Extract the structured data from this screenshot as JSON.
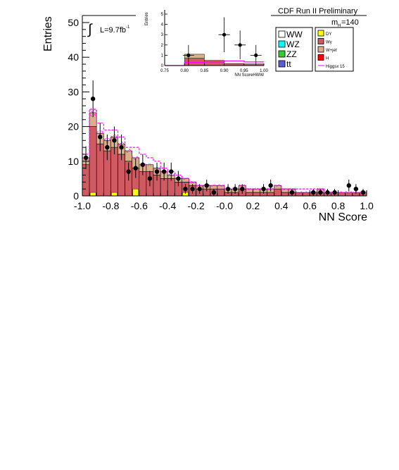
{
  "chart_data": {
    "type": "histogram",
    "title": "CDF Run II Preliminary",
    "xlabel": "NN Score",
    "ylabel": "Entries",
    "xlim": [
      -1.0,
      1.0
    ],
    "ylim": [
      0,
      53
    ],
    "x_ticks": [
      "-1.0",
      "-0.8",
      "-0.6",
      "-0.4",
      "-0.2",
      "-0.0",
      "0.2",
      "0.4",
      "0.6",
      "0.8",
      "1.0"
    ],
    "x_tick_values": [
      -1.0,
      -0.8,
      -0.6,
      -0.4,
      -0.2,
      0.0,
      0.2,
      0.4,
      0.6,
      0.8,
      1.0
    ],
    "y_ticks": [
      "0",
      "10",
      "20",
      "30",
      "40",
      "50"
    ],
    "y_tick_values": [
      0,
      10,
      20,
      30,
      40,
      50
    ],
    "annotations": {
      "luminosity": "L=9.7fb",
      "luminosity_sup": "-1",
      "mass_label": "m",
      "mass_sub": "H",
      "mass_value": "=140",
      "integral_symbol": "∫"
    },
    "bin_edges_start": -1.0,
    "bin_width": 0.05,
    "stack_bins": {
      "Wgamma": [
        9,
        20,
        15,
        13,
        14,
        12,
        10,
        8,
        7,
        7,
        6,
        5,
        5,
        4,
        4,
        3,
        2,
        2,
        2,
        2,
        1,
        1,
        2,
        1,
        1,
        1,
        1,
        2,
        1,
        1,
        1,
        1,
        1,
        1,
        1,
        1,
        1,
        1,
        1,
        1
      ],
      "Wjet": [
        2,
        4,
        3,
        3,
        3,
        3,
        3,
        3,
        2,
        2,
        2,
        2,
        1,
        1,
        1,
        1,
        1,
        1,
        1,
        1,
        1,
        1,
        1,
        1,
        1,
        1,
        1,
        1,
        1,
        1,
        0,
        0,
        0,
        1,
        0,
        0,
        0,
        0,
        0,
        0
      ],
      "DY": [
        0,
        1,
        0,
        0,
        1,
        0,
        0,
        2,
        0,
        0,
        0,
        0,
        0,
        0,
        1,
        0,
        0,
        0,
        0,
        0,
        0,
        0,
        0,
        0,
        0,
        0,
        0,
        0,
        0,
        0,
        0,
        0,
        0,
        0,
        0,
        0,
        0,
        0,
        0,
        0
      ],
      "WW": [
        0,
        0,
        0,
        0,
        0,
        0,
        0,
        0,
        0,
        0,
        0,
        0,
        0,
        0,
        0,
        0,
        0,
        0,
        0,
        0,
        0,
        0,
        0,
        0,
        0,
        0,
        0,
        0,
        0,
        0,
        0,
        0,
        0,
        0,
        0,
        0,
        0,
        0,
        0,
        0
      ]
    },
    "higgs_x15_bins": [
      12,
      25,
      21,
      19,
      19,
      17,
      14,
      14,
      12,
      11,
      10,
      8,
      7,
      6,
      5,
      4,
      3,
      3,
      3,
      3,
      2,
      2,
      3,
      2,
      2,
      2,
      2,
      3,
      2,
      2,
      2,
      2,
      2,
      2,
      1,
      1,
      1,
      1,
      1,
      1
    ],
    "data_points": [
      {
        "x": -0.975,
        "y": 11,
        "err": 3.3
      },
      {
        "x": -0.925,
        "y": 28,
        "err": 5.3
      },
      {
        "x": -0.875,
        "y": 17,
        "err": 4.1
      },
      {
        "x": -0.825,
        "y": 14,
        "err": 3.7
      },
      {
        "x": -0.775,
        "y": 16,
        "err": 4.0
      },
      {
        "x": -0.725,
        "y": 14,
        "err": 3.7
      },
      {
        "x": -0.675,
        "y": 7,
        "err": 2.6
      },
      {
        "x": -0.625,
        "y": 8,
        "err": 2.8
      },
      {
        "x": -0.575,
        "y": 9,
        "err": 3.0
      },
      {
        "x": -0.525,
        "y": 5,
        "err": 2.2
      },
      {
        "x": -0.475,
        "y": 7,
        "err": 2.6
      },
      {
        "x": -0.425,
        "y": 7,
        "err": 2.6
      },
      {
        "x": -0.375,
        "y": 7,
        "err": 2.6
      },
      {
        "x": -0.325,
        "y": 5,
        "err": 2.2
      },
      {
        "x": -0.275,
        "y": 2,
        "err": 1.4
      },
      {
        "x": -0.225,
        "y": 2,
        "err": 1.4
      },
      {
        "x": -0.175,
        "y": 2,
        "err": 1.4
      },
      {
        "x": -0.125,
        "y": 3,
        "err": 1.7
      },
      {
        "x": -0.075,
        "y": 1,
        "err": 1.0
      },
      {
        "x": 0.025,
        "y": 2,
        "err": 1.4
      },
      {
        "x": 0.075,
        "y": 2,
        "err": 1.4
      },
      {
        "x": 0.125,
        "y": 2,
        "err": 1.4
      },
      {
        "x": 0.275,
        "y": 2,
        "err": 1.4
      },
      {
        "x": 0.325,
        "y": 3,
        "err": 1.7
      },
      {
        "x": 0.475,
        "y": 1,
        "err": 1.0
      },
      {
        "x": 0.625,
        "y": 1,
        "err": 1.0
      },
      {
        "x": 0.675,
        "y": 1,
        "err": 1.0
      },
      {
        "x": 0.725,
        "y": 1,
        "err": 1.0
      },
      {
        "x": 0.775,
        "y": 1,
        "err": 1.0
      },
      {
        "x": 0.875,
        "y": 3,
        "err": 1.7
      },
      {
        "x": 0.925,
        "y": 2,
        "err": 1.4
      },
      {
        "x": 0.975,
        "y": 1,
        "err": 1.0
      }
    ],
    "inset": {
      "ylabel": "Entries",
      "xlabel": "NN ScoreHWW",
      "xlim": [
        0.75,
        1.0
      ],
      "ylim": [
        0,
        5.5
      ],
      "x_ticks": [
        "0.75",
        "0.80",
        "0.85",
        "0.90",
        "0.95",
        "1.00"
      ],
      "x_tick_values": [
        0.75,
        0.8,
        0.85,
        0.9,
        0.95,
        1.0
      ],
      "y_ticks": [
        "0",
        "1",
        "2",
        "3",
        "4",
        "5"
      ],
      "y_tick_values": [
        0,
        1,
        2,
        3,
        4,
        5
      ],
      "bin_edges_start": 0.75,
      "bin_width": 0.05,
      "stack_bins": {
        "Wgamma": [
          0.0,
          0.7,
          0.5,
          0.2,
          0.15
        ],
        "Wjet": [
          0.0,
          0.4,
          0.0,
          0.0,
          0.0
        ]
      },
      "higgs_x15_bins": [
        0.0,
        0.3,
        0.35,
        0.45,
        0.35
      ],
      "data_points": [
        {
          "x": 0.81,
          "y": 1,
          "err": 1.0
        },
        {
          "x": 0.9,
          "y": 3,
          "err": 1.7
        },
        {
          "x": 0.94,
          "y": 2,
          "err": 1.4
        },
        {
          "x": 0.98,
          "y": 1,
          "err": 1.0
        }
      ]
    },
    "legend": {
      "placement": "top-right",
      "left_column": [
        {
          "label": "WW",
          "color": "#ffffff"
        },
        {
          "label": "WZ",
          "color": "#00ffff"
        },
        {
          "label": "ZZ",
          "color": "#33cc33"
        },
        {
          "label": "tt",
          "color": "#5c5cd6"
        }
      ],
      "right_column": [
        {
          "label": "DY",
          "color": "#ffff00",
          "kind": "box"
        },
        {
          "label": "Wγ",
          "color": "#d05a62",
          "kind": "box"
        },
        {
          "label": "W+jet",
          "color": "#d8b08c",
          "kind": "box"
        },
        {
          "label": "H",
          "color": "#ff0000",
          "kind": "box"
        },
        {
          "label": "Higgsx 15",
          "color": "#ff00ff",
          "kind": "line"
        }
      ]
    },
    "colors": {
      "Wgamma": "#d05a62",
      "Wjet": "#d8b08c",
      "DY": "#ffff00",
      "higgs_line": "#ff00ff",
      "uncertainty_hatch": "#ff00ff",
      "data": "#000000"
    }
  }
}
